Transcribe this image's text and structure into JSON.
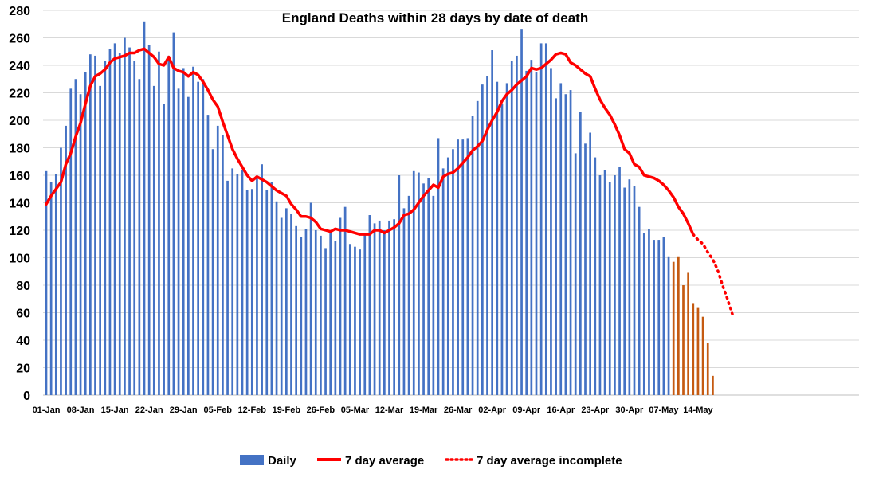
{
  "chart_data": {
    "type": "bar",
    "title": "England Deaths within 28 days by date of death",
    "xlabel": "",
    "ylabel": "",
    "ylim": [
      0,
      280
    ],
    "yticks": [
      0,
      20,
      40,
      60,
      80,
      100,
      120,
      140,
      160,
      180,
      200,
      220,
      240,
      260,
      280
    ],
    "grid": true,
    "legend_position": "bottom",
    "x_tick_labels": [
      "01-Jan",
      "08-Jan",
      "15-Jan",
      "22-Jan",
      "29-Jan",
      "05-Feb",
      "12-Feb",
      "19-Feb",
      "26-Feb",
      "05-Mar",
      "12-Mar",
      "19-Mar",
      "26-Mar",
      "02-Apr",
      "09-Apr",
      "16-Apr",
      "23-Apr",
      "30-Apr",
      "07-May",
      "14-May"
    ],
    "x_tick_step_days": 7,
    "first_date": "01-Jan",
    "complete_days": 128,
    "series": [
      {
        "name": "Daily",
        "kind": "bar",
        "color": "#4472C4",
        "incomplete_color": "#C55A11",
        "values": [
          163,
          155,
          161,
          180,
          196,
          223,
          230,
          219,
          235,
          248,
          247,
          225,
          243,
          252,
          256,
          249,
          260,
          253,
          243,
          230,
          272,
          255,
          225,
          250,
          212,
          247,
          264,
          223,
          238,
          217,
          239,
          228,
          230,
          204,
          179,
          196,
          189,
          156,
          165,
          161,
          164,
          149,
          150,
          159,
          168,
          149,
          155,
          141,
          129,
          136,
          132,
          123,
          115,
          121,
          140,
          120,
          116,
          107,
          119,
          112,
          129,
          137,
          110,
          108,
          106,
          117,
          131,
          125,
          127,
          120,
          127,
          128,
          160,
          136,
          145,
          163,
          162,
          154,
          158,
          145,
          187,
          165,
          173,
          179,
          186,
          186,
          187,
          203,
          214,
          226,
          232,
          251,
          228,
          212,
          227,
          243,
          247,
          266,
          236,
          244,
          235,
          256,
          256,
          238,
          216,
          227,
          219,
          222,
          176,
          206,
          183,
          191,
          173,
          160,
          164,
          155,
          160,
          166,
          151,
          157,
          152,
          137,
          118,
          121,
          113,
          113,
          115,
          101,
          97,
          101,
          80,
          89,
          67,
          64,
          57,
          38,
          14
        ]
      },
      {
        "name": "7 day average",
        "kind": "line",
        "color": "#FF0000",
        "values": [
          139,
          145,
          150,
          155,
          168,
          176,
          188,
          198,
          212,
          225,
          232,
          234,
          237,
          242,
          245,
          246,
          247,
          249,
          249,
          251,
          252,
          249,
          246,
          241,
          240,
          246,
          238,
          236,
          235,
          232,
          235,
          233,
          228,
          222,
          215,
          210,
          199,
          189,
          179,
          172,
          166,
          160,
          156,
          159,
          157,
          155,
          152,
          149,
          147,
          145,
          139,
          135,
          130,
          130,
          129,
          126,
          121,
          120,
          119,
          121,
          120,
          120,
          119,
          118,
          117,
          117,
          117,
          120,
          120,
          118,
          120,
          122,
          125,
          131,
          132,
          135,
          140,
          145,
          149,
          153,
          151,
          159,
          161,
          162,
          165,
          169,
          173,
          178,
          181,
          185,
          193,
          200,
          206,
          214,
          219,
          222,
          226,
          229,
          232,
          238,
          237,
          238,
          241,
          244,
          248,
          249,
          248,
          242,
          240,
          237,
          234,
          232,
          223,
          215,
          209,
          204,
          197,
          189,
          179,
          176,
          168,
          166,
          160,
          159,
          158,
          156,
          153,
          149,
          144,
          137,
          132,
          125,
          117
        ]
      },
      {
        "name": "7 day average incomplete",
        "kind": "line-dotted",
        "color": "#FF0000",
        "values": [
          117,
          113,
          110,
          104,
          99,
          91,
          80,
          70,
          59
        ]
      }
    ]
  },
  "legend": {
    "daily": "Daily",
    "avg": "7 day average",
    "incomplete": "7 day average incomplete"
  }
}
